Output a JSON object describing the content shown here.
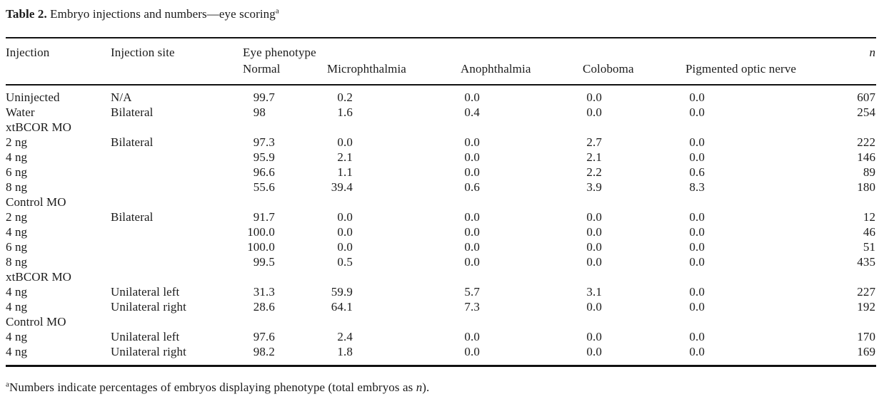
{
  "title": {
    "label": "Table 2.",
    "text": " Embryo injections and numbers—eye scoring",
    "superscript": "a"
  },
  "table": {
    "header": {
      "injection": "Injection",
      "injection_site": "Injection site",
      "eye_phenotype": "Eye phenotype",
      "n": "n",
      "phenotypes": [
        "Normal",
        "Microphthalmia",
        "Anophthalmia",
        "Coloboma",
        "Pigmented optic nerve"
      ]
    },
    "rows": [
      {
        "type": "data",
        "injection": "Uninjected",
        "site": "N/A",
        "values": [
          "99.7",
          "0.2",
          "0.0",
          "0.0",
          "0.0"
        ],
        "n": "607"
      },
      {
        "type": "data",
        "injection": "Water",
        "site": "Bilateral",
        "values": [
          "98",
          "1.6",
          "0.4",
          "0.0",
          "0.0"
        ],
        "n": "254"
      },
      {
        "type": "section",
        "label": "xtBCOR MO"
      },
      {
        "type": "data",
        "injection": "2 ng",
        "site": "Bilateral",
        "values": [
          "97.3",
          "0.0",
          "0.0",
          "2.7",
          "0.0"
        ],
        "n": "222"
      },
      {
        "type": "data",
        "injection": "4 ng",
        "site": "",
        "values": [
          "95.9",
          "2.1",
          "0.0",
          "2.1",
          "0.0"
        ],
        "n": "146"
      },
      {
        "type": "data",
        "injection": "6 ng",
        "site": "",
        "values": [
          "96.6",
          "1.1",
          "0.0",
          "2.2",
          "0.6"
        ],
        "n": "89"
      },
      {
        "type": "data",
        "injection": "8 ng",
        "site": "",
        "values": [
          "55.6",
          "39.4",
          "0.6",
          "3.9",
          "8.3"
        ],
        "n": "180"
      },
      {
        "type": "section",
        "label": "Control MO"
      },
      {
        "type": "data",
        "injection": "2 ng",
        "site": "Bilateral",
        "values": [
          "91.7",
          "0.0",
          "0.0",
          "0.0",
          "0.0"
        ],
        "n": "12"
      },
      {
        "type": "data",
        "injection": "4 ng",
        "site": "",
        "values": [
          "100.0",
          "0.0",
          "0.0",
          "0.0",
          "0.0"
        ],
        "n": "46"
      },
      {
        "type": "data",
        "injection": "6 ng",
        "site": "",
        "values": [
          "100.0",
          "0.0",
          "0.0",
          "0.0",
          "0.0"
        ],
        "n": "51"
      },
      {
        "type": "data",
        "injection": "8 ng",
        "site": "",
        "values": [
          "99.5",
          "0.5",
          "0.0",
          "0.0",
          "0.0"
        ],
        "n": "435"
      },
      {
        "type": "section",
        "label": "xtBCOR MO"
      },
      {
        "type": "data",
        "injection": "4 ng",
        "site": "Unilateral left",
        "values": [
          "31.3",
          "59.9",
          "5.7",
          "3.1",
          "0.0"
        ],
        "n": "227"
      },
      {
        "type": "data",
        "injection": "4 ng",
        "site": "Unilateral right",
        "values": [
          "28.6",
          "64.1",
          "7.3",
          "0.0",
          "0.0"
        ],
        "n": "192"
      },
      {
        "type": "section",
        "label": "Control MO"
      },
      {
        "type": "data",
        "injection": "4 ng",
        "site": "Unilateral left",
        "values": [
          "97.6",
          "2.4",
          "0.0",
          "0.0",
          "0.0"
        ],
        "n": "170"
      },
      {
        "type": "data",
        "injection": "4 ng",
        "site": "Unilateral right",
        "values": [
          "98.2",
          "1.8",
          "0.0",
          "0.0",
          "0.0"
        ],
        "n": "169"
      }
    ]
  },
  "footnote": {
    "marker": "a",
    "text_before_italic": "Numbers indicate percentages of embryos displaying phenotype (total embryos as ",
    "italic": "n",
    "text_after_italic": ")."
  }
}
